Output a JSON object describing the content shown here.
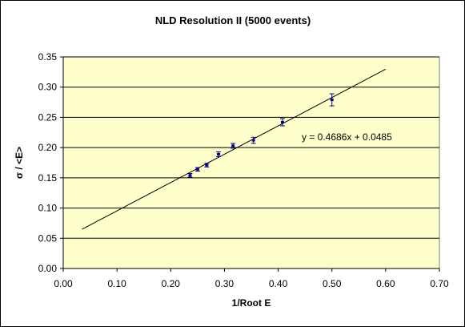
{
  "chart_data": {
    "type": "scatter",
    "title": "NLD Resolution II (5000 events)",
    "xlabel": "1/Root E",
    "ylabel": "σ / <E>",
    "xlim": [
      0,
      0.7
    ],
    "ylim": [
      0,
      0.35
    ],
    "x_ticks": [
      "0.00",
      "0.10",
      "0.20",
      "0.30",
      "0.40",
      "0.50",
      "0.60",
      "0.70"
    ],
    "y_ticks": [
      "0.00",
      "0.05",
      "0.10",
      "0.15",
      "0.20",
      "0.25",
      "0.30",
      "0.35"
    ],
    "grid": {
      "horizontal": true,
      "vertical": false
    },
    "plot_background": "#FFFFCC",
    "points": [
      {
        "x": 0.236,
        "y": 0.154,
        "err": 0.003
      },
      {
        "x": 0.25,
        "y": 0.164,
        "err": 0.003
      },
      {
        "x": 0.267,
        "y": 0.171,
        "err": 0.003
      },
      {
        "x": 0.289,
        "y": 0.189,
        "err": 0.004
      },
      {
        "x": 0.316,
        "y": 0.203,
        "err": 0.004
      },
      {
        "x": 0.354,
        "y": 0.212,
        "err": 0.005
      },
      {
        "x": 0.408,
        "y": 0.242,
        "err": 0.006
      },
      {
        "x": 0.5,
        "y": 0.279,
        "err": 0.01
      }
    ],
    "trendline": {
      "slope": 0.4686,
      "intercept": 0.0485,
      "x_range": [
        0.035,
        0.6
      ],
      "equation": "y = 0.4686x + 0.0485"
    },
    "colors": {
      "points": "#000080",
      "line": "#000000",
      "grid": "#000000",
      "plot_border": "#808080"
    }
  }
}
